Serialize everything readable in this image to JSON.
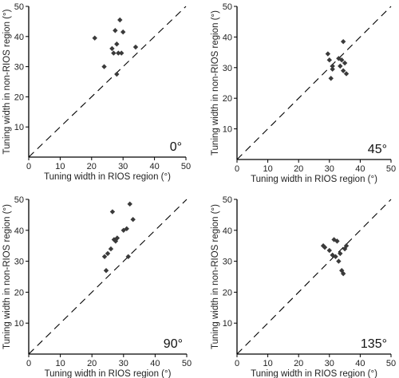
{
  "chart_data": [
    {
      "type": "scatter",
      "title": "",
      "panel_label": "0°",
      "xlabel": "Tuning width in RIOS region (°)",
      "ylabel": "Tuning width in non-RIOS region (°)",
      "xlim": [
        0,
        50
      ],
      "ylim": [
        0,
        50
      ],
      "xticks": [
        0,
        10,
        20,
        30,
        40,
        50
      ],
      "yticks": [
        10,
        20,
        30,
        40,
        50
      ],
      "diagonal": "y = x dashed",
      "points": [
        [
          21,
          39.5
        ],
        [
          24,
          30
        ],
        [
          26.5,
          36
        ],
        [
          27,
          34.5
        ],
        [
          27.5,
          42
        ],
        [
          28,
          37.5
        ],
        [
          28,
          27.5
        ],
        [
          28.5,
          34.5
        ],
        [
          29,
          45.5
        ],
        [
          29.5,
          34.5
        ],
        [
          30,
          41.5
        ],
        [
          34,
          36.5
        ]
      ]
    },
    {
      "type": "scatter",
      "title": "",
      "panel_label": "45°",
      "xlabel": "Tuning width in RIOS region (°)",
      "ylabel": "Tuning width in non-RIOS region (°)",
      "xlim": [
        0,
        50
      ],
      "ylim": [
        0,
        50
      ],
      "xticks": [
        0,
        10,
        20,
        30,
        40,
        50
      ],
      "yticks": [
        10,
        20,
        30,
        40,
        50
      ],
      "diagonal": "y = x dashed",
      "points": [
        [
          29.5,
          34.5
        ],
        [
          30,
          32.5
        ],
        [
          30.5,
          26.5
        ],
        [
          31,
          29.5
        ],
        [
          33,
          33
        ],
        [
          33.5,
          30.5
        ],
        [
          34,
          32.5
        ],
        [
          34.5,
          29
        ],
        [
          34.5,
          38.5
        ],
        [
          35,
          31.5
        ],
        [
          35.5,
          28
        ],
        [
          31,
          30.5
        ]
      ]
    },
    {
      "type": "scatter",
      "title": "",
      "panel_label": "90°",
      "xlabel": "Tuning width in RIOS region (°)",
      "ylabel": "Tuning width in non-RIOS region (°)",
      "xlim": [
        0,
        50
      ],
      "ylim": [
        0,
        50
      ],
      "xticks": [
        0,
        10,
        20,
        30,
        40,
        50
      ],
      "yticks": [
        10,
        20,
        30,
        40,
        50
      ],
      "diagonal": "y = x dashed",
      "points": [
        [
          24,
          31.5
        ],
        [
          24.5,
          27
        ],
        [
          25,
          32.5
        ],
        [
          26,
          34
        ],
        [
          26.5,
          46
        ],
        [
          27,
          37
        ],
        [
          28,
          37.5
        ],
        [
          30,
          40
        ],
        [
          31,
          40.5
        ],
        [
          31.5,
          31.5
        ],
        [
          32,
          48.5
        ],
        [
          33,
          43.5
        ],
        [
          27.5,
          36.5
        ]
      ]
    },
    {
      "type": "scatter",
      "title": "",
      "panel_label": "135°",
      "xlabel": "Tuning width in RIOS region (°)",
      "ylabel": "Tuning width in non-RIOS region (°)",
      "xlim": [
        0,
        50
      ],
      "ylim": [
        0,
        50
      ],
      "xticks": [
        0,
        10,
        20,
        30,
        40,
        50
      ],
      "yticks": [
        10,
        20,
        30,
        40,
        50
      ],
      "diagonal": "y = x dashed",
      "points": [
        [
          28,
          35
        ],
        [
          28.5,
          34.5
        ],
        [
          30,
          33.5
        ],
        [
          31,
          32
        ],
        [
          31.5,
          37
        ],
        [
          32,
          31.5
        ],
        [
          32.5,
          36.5
        ],
        [
          33,
          30
        ],
        [
          33.5,
          32.5
        ],
        [
          34,
          27
        ],
        [
          34.5,
          26
        ],
        [
          35,
          34
        ],
        [
          35.5,
          35
        ]
      ]
    }
  ]
}
